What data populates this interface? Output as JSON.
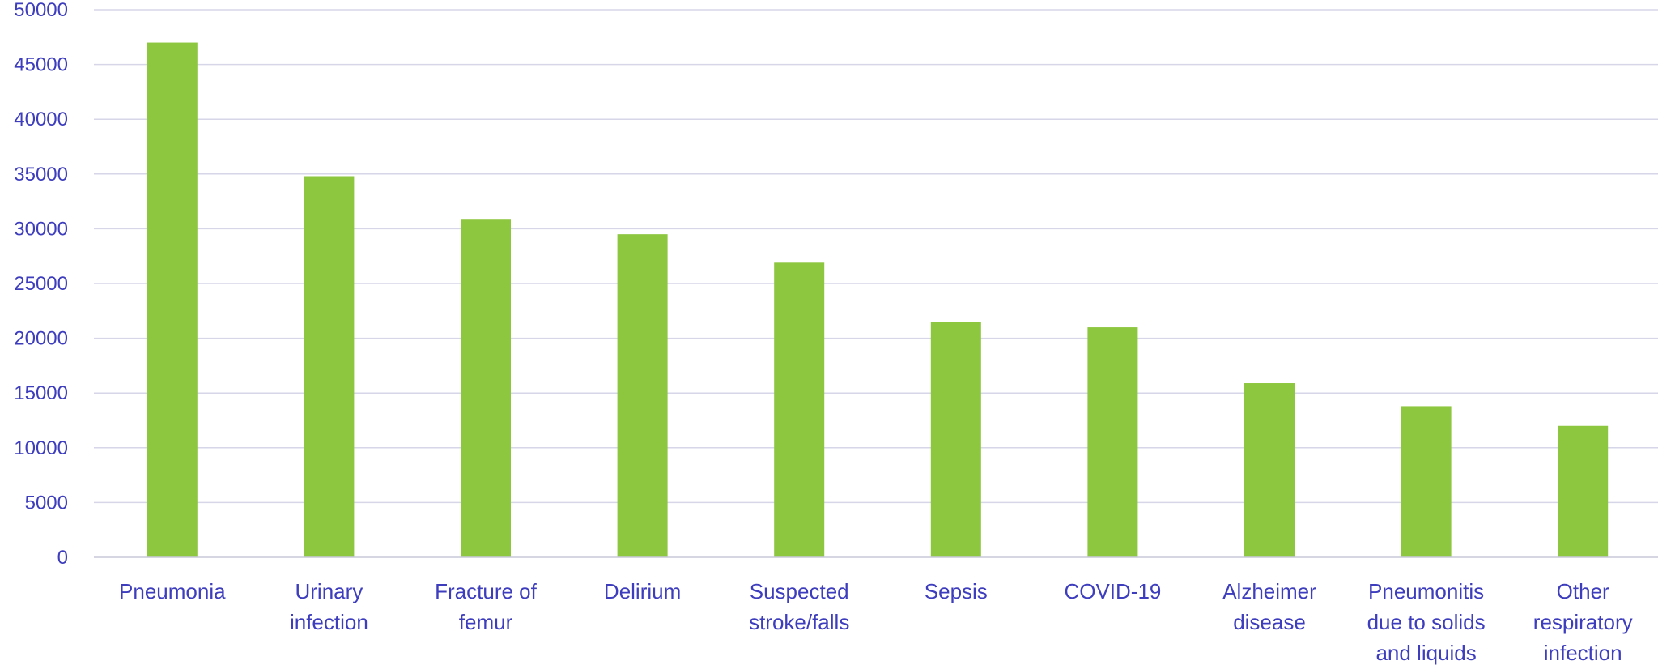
{
  "colors": {
    "bar": "#8dc63f",
    "text": "#3d3dbd",
    "grid": "#d6d6e8",
    "axis": "#c8c8d8"
  },
  "chart_data": {
    "type": "bar",
    "categories": [
      [
        "Pneumonia"
      ],
      [
        "Urinary",
        "infection"
      ],
      [
        "Fracture of",
        "femur"
      ],
      [
        "Delirium"
      ],
      [
        "Suspected",
        "stroke/falls"
      ],
      [
        "Sepsis"
      ],
      [
        "COVID-19"
      ],
      [
        "Alzheimer",
        "disease"
      ],
      [
        "Pneumonitis",
        "due to solids",
        "and liquids"
      ],
      [
        "Other",
        "respiratory",
        "infection"
      ]
    ],
    "values": [
      47000,
      34800,
      30900,
      29500,
      26900,
      21500,
      21000,
      15900,
      13800,
      12000
    ],
    "ylim": [
      0,
      50000
    ],
    "yticks": [
      0,
      5000,
      10000,
      15000,
      20000,
      25000,
      30000,
      35000,
      40000,
      45000,
      50000
    ],
    "grid": true,
    "title": "",
    "xlabel": "",
    "ylabel": ""
  }
}
